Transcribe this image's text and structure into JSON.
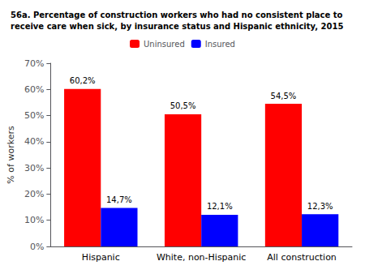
{
  "chart_data": {
    "type": "bar",
    "title": "56a. Percentage of construction workers who had no consistent place to\nreceive care when sick, by insurance status and Hispanic ethnicity, 2015",
    "categories": [
      "Hispanic",
      "White, non-Hispanic",
      "All construction"
    ],
    "series": [
      {
        "name": "Uninsured",
        "color": "#FF0000",
        "values": [
          60.2,
          50.5,
          54.5
        ],
        "value_labels": [
          "60,2%",
          "50,5%",
          "54,5%"
        ]
      },
      {
        "name": "Insured",
        "color": "#0000FF",
        "values": [
          14.7,
          12.1,
          12.3
        ],
        "value_labels": [
          "14,7%",
          "12,1%",
          "12,3%"
        ]
      }
    ],
    "ylabel": "% of workers",
    "ylim": [
      0,
      70
    ],
    "yticks": [
      {
        "value": 0,
        "label": "0%"
      },
      {
        "value": 10,
        "label": "10%"
      },
      {
        "value": 20,
        "label": "20%"
      },
      {
        "value": 30,
        "label": "30%"
      },
      {
        "value": 40,
        "label": "40%"
      },
      {
        "value": 50,
        "label": "50%"
      },
      {
        "value": 60,
        "label": "60%"
      },
      {
        "value": 70,
        "label": "70%"
      }
    ],
    "grid": false,
    "legend": "top",
    "data_labels": true
  }
}
